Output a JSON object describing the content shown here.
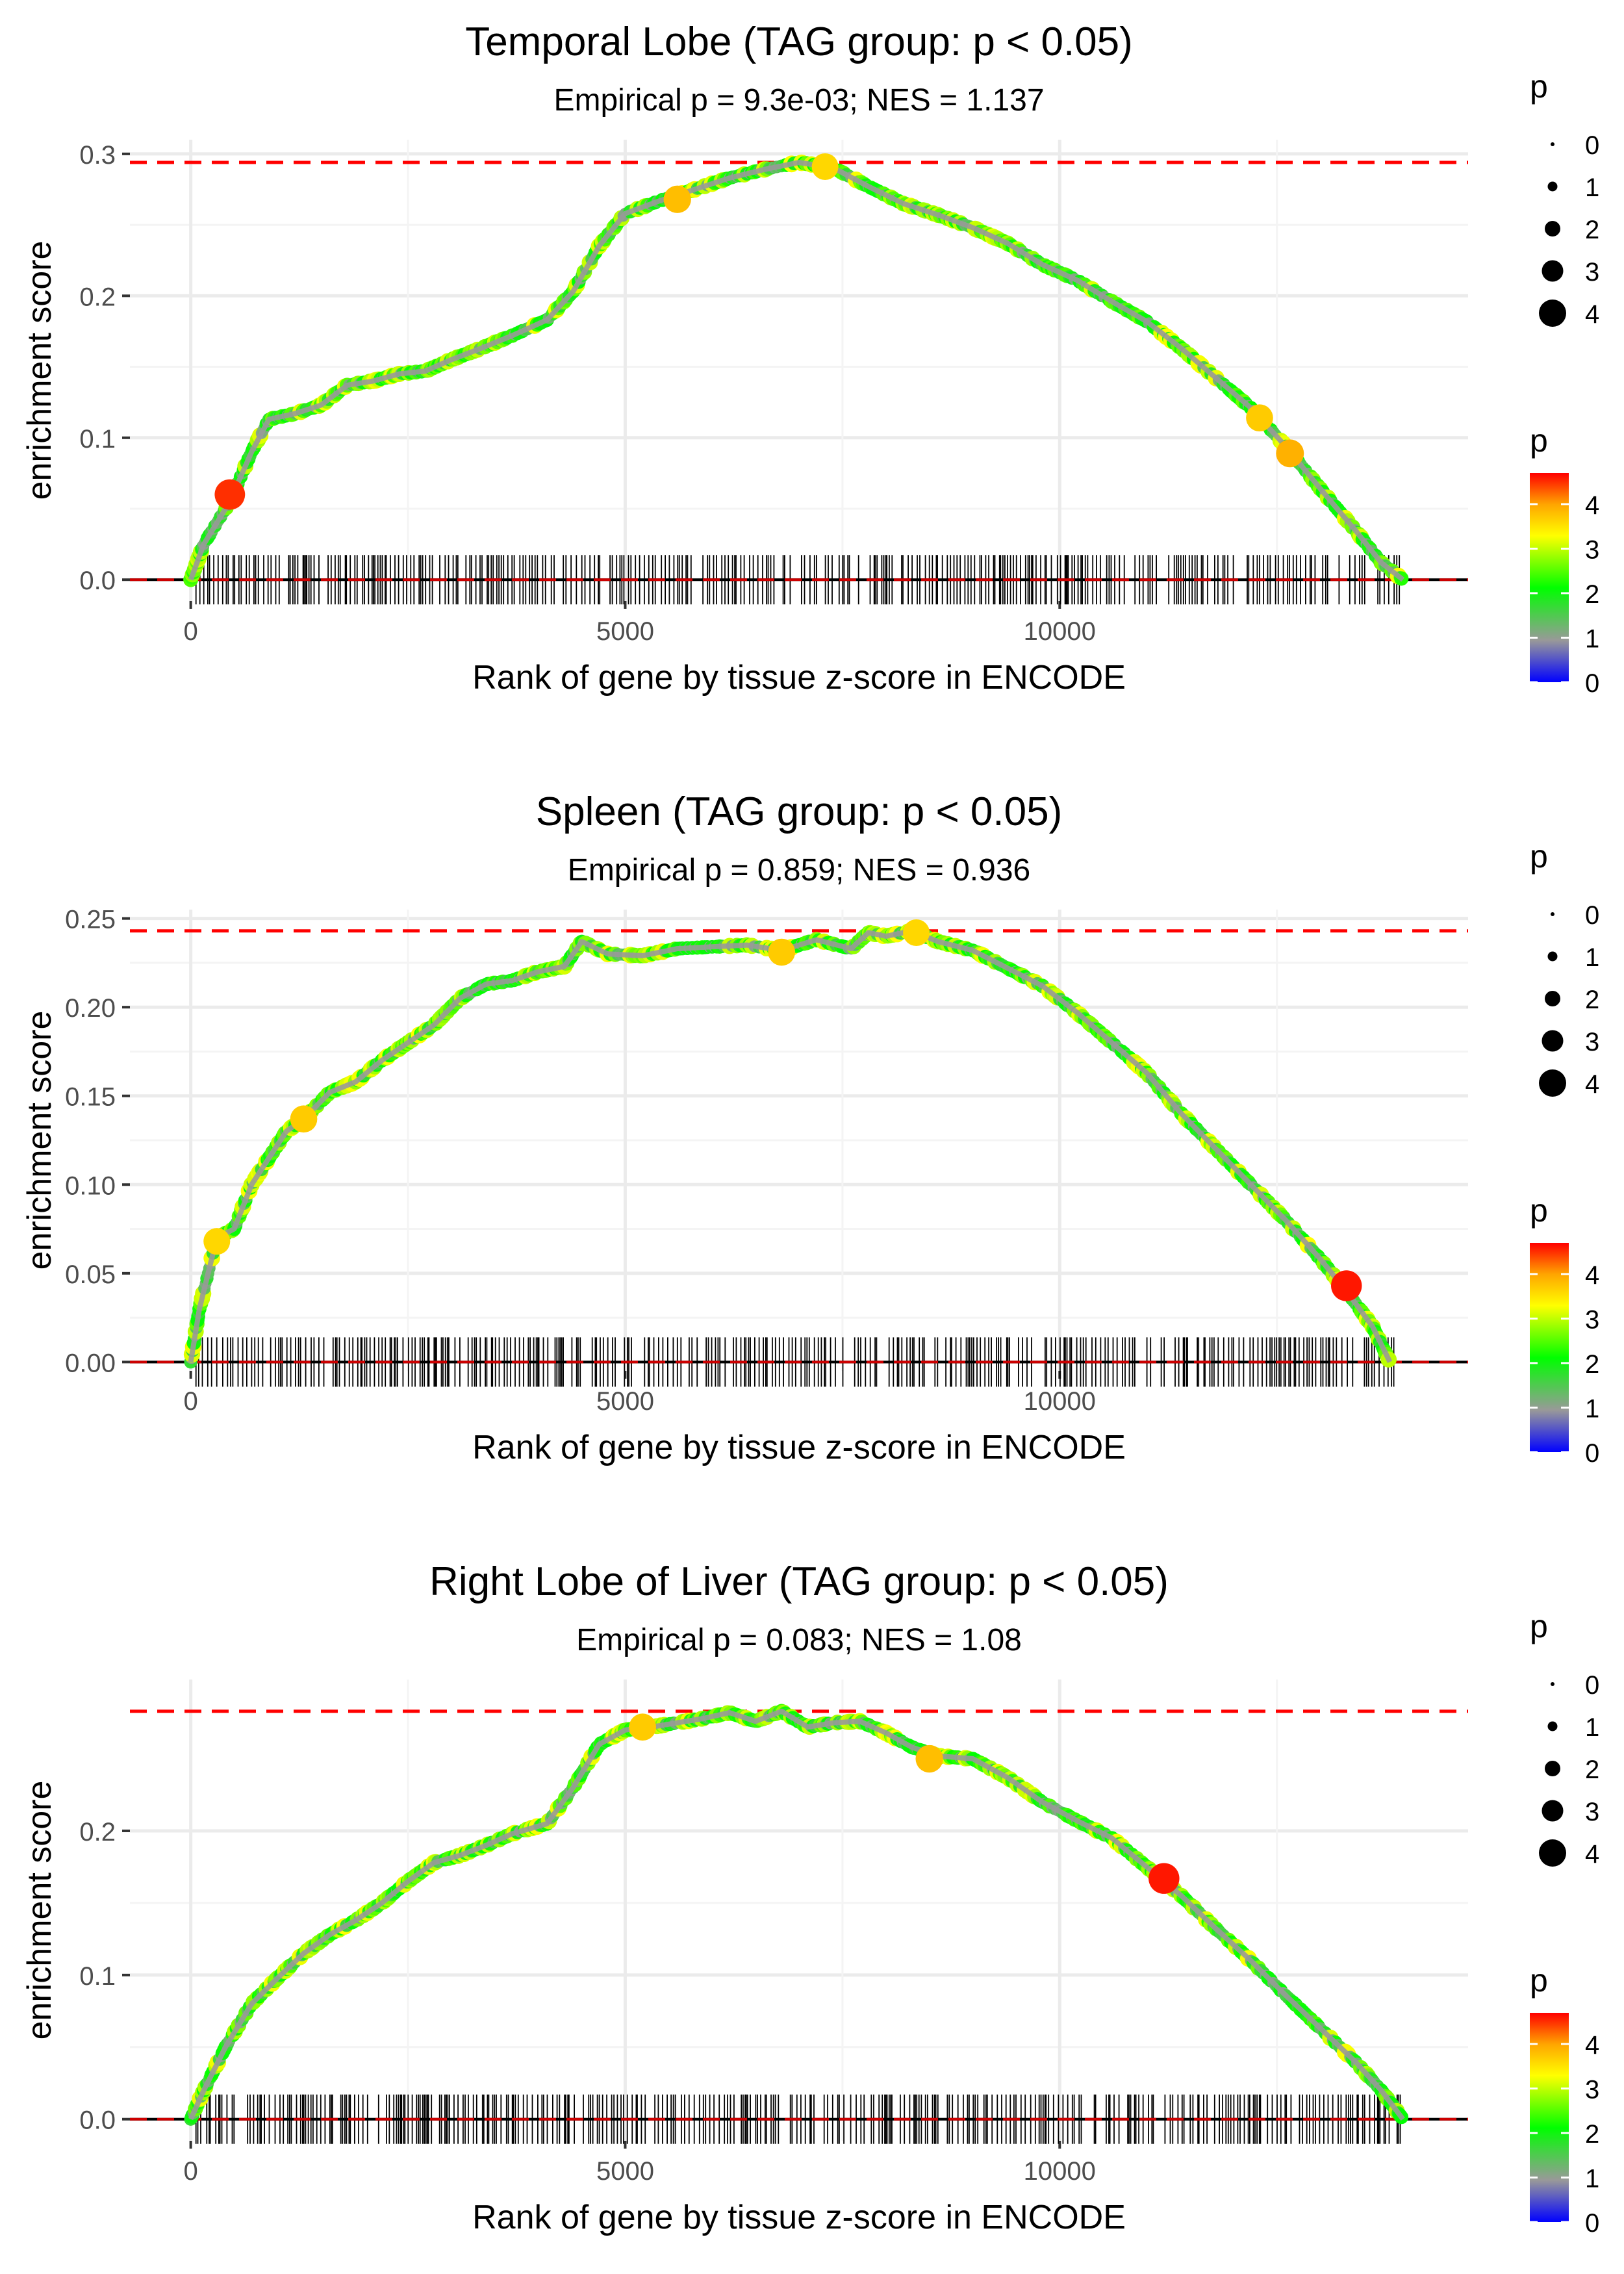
{
  "chart_data": [
    {
      "type": "line",
      "title": "Temporal Lobe (TAG group: p < 0.05)",
      "subtitle": "Empirical p = 9.3e-03; NES = 1.137",
      "xlabel": "Rank of gene by tissue z-score in ENCODE",
      "ylabel": "enrichment score",
      "xlim": [
        -700,
        14700
      ],
      "ylim": [
        -0.015,
        0.31
      ],
      "x_ticks": [
        0,
        5000,
        10000
      ],
      "x_tick_labels": [
        "0",
        "5000",
        "10000"
      ],
      "y_ticks": [
        0,
        0.1,
        0.2,
        0.3
      ],
      "y_tick_labels": [
        "0.0",
        "0.1",
        "0.2",
        "0.3"
      ],
      "max_es": 0.294,
      "rug_end": 13950,
      "series": {
        "name": "enrichment score",
        "x": [
          0,
          150,
          450,
          700,
          900,
          1200,
          1500,
          1800,
          2100,
          2400,
          2700,
          3000,
          3300,
          3700,
          4100,
          4400,
          4700,
          5000,
          5400,
          5800,
          6200,
          6600,
          7000,
          7400,
          7800,
          8200,
          8600,
          9000,
          9400,
          9800,
          10200,
          10600,
          11000,
          11400,
          11800,
          12200,
          12600,
          13000,
          13400,
          13700,
          13950
        ],
        "y": [
          0.0,
          0.025,
          0.055,
          0.09,
          0.113,
          0.117,
          0.123,
          0.137,
          0.14,
          0.145,
          0.147,
          0.155,
          0.162,
          0.172,
          0.183,
          0.203,
          0.235,
          0.258,
          0.267,
          0.275,
          0.283,
          0.289,
          0.294,
          0.29,
          0.277,
          0.265,
          0.257,
          0.248,
          0.237,
          0.222,
          0.211,
          0.196,
          0.182,
          0.163,
          0.142,
          0.121,
          0.094,
          0.064,
          0.035,
          0.012,
          0.0
        ]
      },
      "highlights": [
        {
          "x": 450,
          "y": 0.06,
          "p": 4.5
        },
        {
          "x": 5600,
          "y": 0.268,
          "p": 3.8
        },
        {
          "x": 7300,
          "y": 0.291,
          "p": 3.6
        },
        {
          "x": 12300,
          "y": 0.114,
          "p": 3.7
        },
        {
          "x": 12650,
          "y": 0.089,
          "p": 3.9
        }
      ],
      "legend_size": {
        "title": "p",
        "labels": [
          "0",
          "1",
          "2",
          "3",
          "4"
        ]
      },
      "legend_color": {
        "title": "p",
        "labels": [
          "4",
          "3",
          "2",
          "1",
          "0"
        ]
      }
    },
    {
      "type": "line",
      "title": "Spleen (TAG group: p < 0.05)",
      "subtitle": "Empirical p = 0.859; NES = 0.936",
      "xlabel": "Rank of gene by tissue z-score in ENCODE",
      "ylabel": "enrichment score",
      "xlim": [
        -700,
        14700
      ],
      "ylim": [
        -0.005,
        0.255
      ],
      "x_ticks": [
        0,
        5000,
        10000
      ],
      "x_tick_labels": [
        "0",
        "5000",
        "10000"
      ],
      "y_ticks": [
        0,
        0.05,
        0.1,
        0.15,
        0.2,
        0.25
      ],
      "y_tick_labels": [
        "0.00",
        "0.05",
        "0.10",
        "0.15",
        "0.20",
        "0.25"
      ],
      "max_es": 0.243,
      "rug_end": 13900,
      "series": {
        "name": "enrichment score",
        "x": [
          0,
          100,
          300,
          500,
          700,
          900,
          1100,
          1300,
          1600,
          1900,
          2200,
          2500,
          2800,
          3100,
          3400,
          3700,
          4000,
          4300,
          4500,
          4800,
          5200,
          5600,
          6000,
          6400,
          6800,
          7200,
          7600,
          7800,
          8000,
          8300,
          8600,
          9000,
          9400,
          9800,
          10200,
          10600,
          11000,
          11400,
          11800,
          12200,
          12600,
          13000,
          13300,
          13600,
          13800
        ],
        "y": [
          0.0,
          0.03,
          0.07,
          0.075,
          0.1,
          0.115,
          0.13,
          0.137,
          0.152,
          0.158,
          0.17,
          0.18,
          0.19,
          0.205,
          0.213,
          0.215,
          0.22,
          0.223,
          0.237,
          0.23,
          0.229,
          0.233,
          0.234,
          0.235,
          0.232,
          0.238,
          0.233,
          0.242,
          0.24,
          0.243,
          0.237,
          0.232,
          0.222,
          0.212,
          0.197,
          0.18,
          0.163,
          0.14,
          0.12,
          0.1,
          0.08,
          0.058,
          0.04,
          0.02,
          0.0
        ]
      },
      "highlights": [
        {
          "x": 300,
          "y": 0.068,
          "p": 3.6
        },
        {
          "x": 1300,
          "y": 0.137,
          "p": 3.7
        },
        {
          "x": 6800,
          "y": 0.231,
          "p": 3.7
        },
        {
          "x": 8350,
          "y": 0.242,
          "p": 3.6
        },
        {
          "x": 13300,
          "y": 0.043,
          "p": 4.6
        }
      ],
      "legend_size": {
        "title": "p",
        "labels": [
          "0",
          "1",
          "2",
          "3",
          "4"
        ]
      },
      "legend_color": {
        "title": "p",
        "labels": [
          "4",
          "3",
          "2",
          "1",
          "0"
        ]
      }
    },
    {
      "type": "line",
      "title": "Right Lobe of Liver (TAG group: p < 0.05)",
      "subtitle": "Empirical p = 0.083; NES = 1.08",
      "xlabel": "Rank of gene by tissue z-score in ENCODE",
      "ylabel": "enrichment score",
      "xlim": [
        -700,
        14700
      ],
      "ylim": [
        -0.015,
        0.305
      ],
      "x_ticks": [
        0,
        5000,
        10000
      ],
      "x_tick_labels": [
        "0",
        "5000",
        "10000"
      ],
      "y_ticks": [
        0,
        0.1,
        0.2
      ],
      "y_tick_labels": [
        "0.0",
        "0.1",
        "0.2"
      ],
      "max_es": 0.283,
      "rug_end": 13950,
      "series": {
        "name": "enrichment score",
        "x": [
          0,
          150,
          400,
          700,
          1000,
          1300,
          1600,
          1900,
          2200,
          2500,
          2800,
          3100,
          3400,
          3700,
          4100,
          4400,
          4700,
          5000,
          5300,
          5600,
          5900,
          6200,
          6500,
          6800,
          7100,
          7400,
          7700,
          8000,
          8300,
          8600,
          9000,
          9400,
          9800,
          10200,
          10600,
          11000,
          11400,
          11800,
          12200,
          12600,
          13000,
          13400,
          13700,
          13950
        ],
        "y": [
          0.0,
          0.02,
          0.05,
          0.08,
          0.098,
          0.115,
          0.128,
          0.138,
          0.15,
          0.165,
          0.178,
          0.183,
          0.19,
          0.198,
          0.205,
          0.23,
          0.26,
          0.27,
          0.272,
          0.275,
          0.278,
          0.282,
          0.276,
          0.283,
          0.272,
          0.275,
          0.276,
          0.268,
          0.258,
          0.252,
          0.25,
          0.237,
          0.22,
          0.207,
          0.195,
          0.175,
          0.155,
          0.132,
          0.11,
          0.086,
          0.063,
          0.04,
          0.02,
          0.0
        ]
      },
      "highlights": [
        {
          "x": 5200,
          "y": 0.272,
          "p": 3.7
        },
        {
          "x": 8500,
          "y": 0.25,
          "p": 3.8
        },
        {
          "x": 11200,
          "y": 0.167,
          "p": 4.6
        }
      ],
      "legend_size": {
        "title": "p",
        "labels": [
          "0",
          "1",
          "2",
          "3",
          "4"
        ]
      },
      "legend_color": {
        "title": "p",
        "labels": [
          "4",
          "3",
          "2",
          "1",
          "0"
        ]
      }
    }
  ]
}
